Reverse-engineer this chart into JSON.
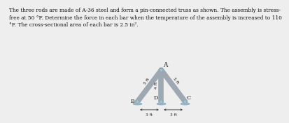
{
  "text_block_line1": "The three rods are made of A-36 steel and form a pin-connected truss as shown. The assembly is stress-",
  "text_block_line2": "free at 50 °F. Determine the force in each bar when the temperature of the assembly is increased to 110",
  "text_block_line3": "°F. The cross-sectional area of each bar is 2.5 in².",
  "bg_color": "#eeeeee",
  "rod_color": "#9ea8b2",
  "pin_color": "#a8c0cc",
  "ground_color": "#a8c0cc",
  "label_A": "A",
  "label_B": "B",
  "label_D": "D",
  "label_C": "C",
  "label_4ft": "4 ft",
  "label_5ft_left": "5 ft",
  "label_5ft_right": "5 ft",
  "label_3ft_left": "3 ft",
  "label_3ft_right": "3 ft",
  "text_fontsize": 5.3,
  "label_fontsize": 4.8,
  "rod_lw": 5.5
}
